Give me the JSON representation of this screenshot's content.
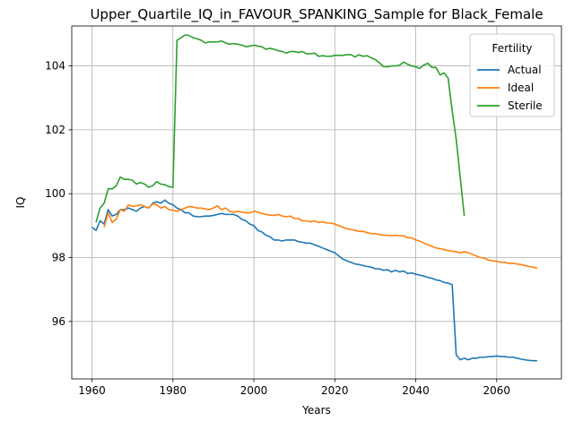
{
  "chart_data": {
    "type": "line",
    "title": "Upper_Quartile_IQ_in_FAVOUR_SPANKING_Sample for Black_Female",
    "xlabel": "Years",
    "ylabel": "IQ",
    "xlim": [
      1955,
      2076
    ],
    "ylim": [
      94.2,
      105.25
    ],
    "xticks": [
      1960,
      1980,
      2000,
      2020,
      2040,
      2060
    ],
    "yticks": [
      96,
      98,
      100,
      102,
      104
    ],
    "grid": true,
    "legend": {
      "title": "Fertility",
      "placement": "top-right"
    },
    "series": [
      {
        "name": "Actual",
        "color": "#1f77b4",
        "points": [
          [
            1960,
            98.95
          ],
          [
            1961,
            98.85
          ],
          [
            1962,
            99.15
          ],
          [
            1963,
            99.05
          ],
          [
            1964,
            99.5
          ],
          [
            1965,
            99.3
          ],
          [
            1966,
            99.35
          ],
          [
            1967,
            99.5
          ],
          [
            1968,
            99.5
          ],
          [
            1969,
            99.55
          ],
          [
            1970,
            99.5
          ],
          [
            1971,
            99.45
          ],
          [
            1972,
            99.55
          ],
          [
            1973,
            99.6
          ],
          [
            1974,
            99.55
          ],
          [
            1975,
            99.7
          ],
          [
            1976,
            99.75
          ],
          [
            1977,
            99.7
          ],
          [
            1978,
            99.8
          ],
          [
            1979,
            99.7
          ],
          [
            1980,
            99.65
          ],
          [
            1981,
            99.55
          ],
          [
            1982,
            99.5
          ],
          [
            1983,
            99.4
          ],
          [
            1984,
            99.4
          ],
          [
            1985,
            99.3
          ],
          [
            1986,
            99.28
          ],
          [
            1987,
            99.28
          ],
          [
            1988,
            99.3
          ],
          [
            1989,
            99.3
          ],
          [
            1990,
            99.32
          ],
          [
            1991,
            99.35
          ],
          [
            1992,
            99.38
          ],
          [
            1993,
            99.35
          ],
          [
            1994,
            99.35
          ],
          [
            1995,
            99.35
          ],
          [
            1996,
            99.3
          ],
          [
            1997,
            99.2
          ],
          [
            1998,
            99.15
          ],
          [
            1999,
            99.05
          ],
          [
            2000,
            99.0
          ],
          [
            2001,
            98.85
          ],
          [
            2002,
            98.8
          ],
          [
            2003,
            98.7
          ],
          [
            2004,
            98.65
          ],
          [
            2005,
            98.55
          ],
          [
            2006,
            98.55
          ],
          [
            2007,
            98.52
          ],
          [
            2008,
            98.55
          ],
          [
            2009,
            98.55
          ],
          [
            2010,
            98.55
          ],
          [
            2011,
            98.5
          ],
          [
            2012,
            98.48
          ],
          [
            2013,
            98.45
          ],
          [
            2014,
            98.45
          ],
          [
            2015,
            98.4
          ],
          [
            2016,
            98.35
          ],
          [
            2017,
            98.3
          ],
          [
            2018,
            98.25
          ],
          [
            2019,
            98.2
          ],
          [
            2020,
            98.15
          ],
          [
            2021,
            98.05
          ],
          [
            2022,
            97.95
          ],
          [
            2023,
            97.9
          ],
          [
            2024,
            97.85
          ],
          [
            2025,
            97.8
          ],
          [
            2026,
            97.78
          ],
          [
            2027,
            97.75
          ],
          [
            2028,
            97.72
          ],
          [
            2029,
            97.7
          ],
          [
            2030,
            97.65
          ],
          [
            2031,
            97.65
          ],
          [
            2032,
            97.6
          ],
          [
            2033,
            97.62
          ],
          [
            2034,
            97.55
          ],
          [
            2035,
            97.6
          ],
          [
            2036,
            97.55
          ],
          [
            2037,
            97.58
          ],
          [
            2038,
            97.5
          ],
          [
            2039,
            97.52
          ],
          [
            2040,
            97.48
          ],
          [
            2041,
            97.45
          ],
          [
            2042,
            97.42
          ],
          [
            2043,
            97.38
          ],
          [
            2044,
            97.35
          ],
          [
            2045,
            97.3
          ],
          [
            2046,
            97.28
          ],
          [
            2047,
            97.22
          ],
          [
            2048,
            97.2
          ],
          [
            2049,
            97.15
          ],
          [
            2050,
            94.95
          ],
          [
            2051,
            94.8
          ],
          [
            2052,
            94.85
          ],
          [
            2053,
            94.8
          ],
          [
            2054,
            94.85
          ],
          [
            2055,
            94.85
          ],
          [
            2056,
            94.88
          ],
          [
            2057,
            94.88
          ],
          [
            2058,
            94.9
          ],
          [
            2059,
            94.9
          ],
          [
            2060,
            94.92
          ],
          [
            2061,
            94.9
          ],
          [
            2062,
            94.9
          ],
          [
            2063,
            94.88
          ],
          [
            2064,
            94.88
          ],
          [
            2065,
            94.85
          ],
          [
            2066,
            94.82
          ],
          [
            2067,
            94.8
          ],
          [
            2068,
            94.78
          ],
          [
            2069,
            94.77
          ],
          [
            2070,
            94.77
          ]
        ]
      },
      {
        "name": "Ideal",
        "color": "#ff7f0e",
        "points": [
          [
            1963,
            98.95
          ],
          [
            1964,
            99.4
          ],
          [
            1965,
            99.1
          ],
          [
            1966,
            99.2
          ],
          [
            1967,
            99.5
          ],
          [
            1968,
            99.45
          ],
          [
            1969,
            99.65
          ],
          [
            1970,
            99.6
          ],
          [
            1971,
            99.62
          ],
          [
            1972,
            99.65
          ],
          [
            1973,
            99.6
          ],
          [
            1974,
            99.55
          ],
          [
            1975,
            99.68
          ],
          [
            1976,
            99.65
          ],
          [
            1977,
            99.55
          ],
          [
            1978,
            99.6
          ],
          [
            1979,
            99.5
          ],
          [
            1980,
            99.48
          ],
          [
            1981,
            99.45
          ],
          [
            1982,
            99.5
          ],
          [
            1983,
            99.55
          ],
          [
            1984,
            99.6
          ],
          [
            1985,
            99.58
          ],
          [
            1986,
            99.55
          ],
          [
            1987,
            99.55
          ],
          [
            1988,
            99.52
          ],
          [
            1989,
            99.5
          ],
          [
            1990,
            99.55
          ],
          [
            1991,
            99.62
          ],
          [
            1992,
            99.5
          ],
          [
            1993,
            99.55
          ],
          [
            1994,
            99.45
          ],
          [
            1995,
            99.42
          ],
          [
            1996,
            99.45
          ],
          [
            1997,
            99.42
          ],
          [
            1998,
            99.4
          ],
          [
            1999,
            99.4
          ],
          [
            2000,
            99.45
          ],
          [
            2001,
            99.42
          ],
          [
            2002,
            99.38
          ],
          [
            2003,
            99.35
          ],
          [
            2004,
            99.33
          ],
          [
            2005,
            99.32
          ],
          [
            2006,
            99.35
          ],
          [
            2007,
            99.3
          ],
          [
            2008,
            99.28
          ],
          [
            2009,
            99.3
          ],
          [
            2010,
            99.22
          ],
          [
            2011,
            99.22
          ],
          [
            2012,
            99.15
          ],
          [
            2013,
            99.15
          ],
          [
            2014,
            99.12
          ],
          [
            2015,
            99.15
          ],
          [
            2016,
            99.1
          ],
          [
            2017,
            99.12
          ],
          [
            2018,
            99.08
          ],
          [
            2019,
            99.08
          ],
          [
            2020,
            99.05
          ],
          [
            2021,
            99.0
          ],
          [
            2022,
            98.95
          ],
          [
            2023,
            98.9
          ],
          [
            2024,
            98.88
          ],
          [
            2025,
            98.85
          ],
          [
            2026,
            98.82
          ],
          [
            2027,
            98.82
          ],
          [
            2028,
            98.78
          ],
          [
            2029,
            98.75
          ],
          [
            2030,
            98.75
          ],
          [
            2031,
            98.72
          ],
          [
            2032,
            98.7
          ],
          [
            2033,
            98.7
          ],
          [
            2034,
            98.68
          ],
          [
            2035,
            98.7
          ],
          [
            2036,
            98.68
          ],
          [
            2037,
            98.68
          ],
          [
            2038,
            98.62
          ],
          [
            2039,
            98.62
          ],
          [
            2040,
            98.55
          ],
          [
            2041,
            98.52
          ],
          [
            2042,
            98.45
          ],
          [
            2043,
            98.4
          ],
          [
            2044,
            98.35
          ],
          [
            2045,
            98.3
          ],
          [
            2046,
            98.28
          ],
          [
            2047,
            98.25
          ],
          [
            2048,
            98.22
          ],
          [
            2049,
            98.2
          ],
          [
            2050,
            98.18
          ],
          [
            2051,
            98.15
          ],
          [
            2052,
            98.18
          ],
          [
            2053,
            98.15
          ],
          [
            2054,
            98.1
          ],
          [
            2055,
            98.05
          ],
          [
            2056,
            98.0
          ],
          [
            2057,
            97.98
          ],
          [
            2058,
            97.92
          ],
          [
            2059,
            97.9
          ],
          [
            2060,
            97.88
          ],
          [
            2061,
            97.85
          ],
          [
            2062,
            97.85
          ],
          [
            2063,
            97.82
          ],
          [
            2064,
            97.82
          ],
          [
            2065,
            97.8
          ],
          [
            2066,
            97.78
          ],
          [
            2067,
            97.75
          ],
          [
            2068,
            97.72
          ],
          [
            2069,
            97.7
          ],
          [
            2070,
            97.66
          ]
        ]
      },
      {
        "name": "Sterile",
        "color": "#2ca02c",
        "points": [
          [
            1961,
            99.1
          ],
          [
            1962,
            99.55
          ],
          [
            1963,
            99.7
          ],
          [
            1964,
            100.15
          ],
          [
            1965,
            100.15
          ],
          [
            1966,
            100.25
          ],
          [
            1967,
            100.52
          ],
          [
            1968,
            100.45
          ],
          [
            1969,
            100.45
          ],
          [
            1970,
            100.42
          ],
          [
            1971,
            100.3
          ],
          [
            1972,
            100.35
          ],
          [
            1973,
            100.3
          ],
          [
            1974,
            100.2
          ],
          [
            1975,
            100.25
          ],
          [
            1976,
            100.38
          ],
          [
            1977,
            100.3
          ],
          [
            1978,
            100.28
          ],
          [
            1979,
            100.22
          ],
          [
            1980,
            100.2
          ],
          [
            1981,
            104.8
          ],
          [
            1982,
            104.88
          ],
          [
            1983,
            104.97
          ],
          [
            1984,
            104.95
          ],
          [
            1985,
            104.88
          ],
          [
            1986,
            104.85
          ],
          [
            1987,
            104.8
          ],
          [
            1988,
            104.72
          ],
          [
            1989,
            104.75
          ],
          [
            1990,
            104.75
          ],
          [
            1991,
            104.75
          ],
          [
            1992,
            104.78
          ],
          [
            1993,
            104.72
          ],
          [
            1994,
            104.68
          ],
          [
            1995,
            104.7
          ],
          [
            1996,
            104.68
          ],
          [
            1997,
            104.65
          ],
          [
            1998,
            104.6
          ],
          [
            1999,
            104.62
          ],
          [
            2000,
            104.65
          ],
          [
            2001,
            104.62
          ],
          [
            2002,
            104.6
          ],
          [
            2003,
            104.52
          ],
          [
            2004,
            104.55
          ],
          [
            2005,
            104.52
          ],
          [
            2006,
            104.48
          ],
          [
            2007,
            104.45
          ],
          [
            2008,
            104.4
          ],
          [
            2009,
            104.45
          ],
          [
            2010,
            104.45
          ],
          [
            2011,
            104.42
          ],
          [
            2012,
            104.45
          ],
          [
            2013,
            104.38
          ],
          [
            2014,
            104.38
          ],
          [
            2015,
            104.4
          ],
          [
            2016,
            104.3
          ],
          [
            2017,
            104.32
          ],
          [
            2018,
            104.3
          ],
          [
            2019,
            104.3
          ],
          [
            2020,
            104.33
          ],
          [
            2021,
            104.33
          ],
          [
            2022,
            104.33
          ],
          [
            2023,
            104.35
          ],
          [
            2024,
            104.35
          ],
          [
            2025,
            104.28
          ],
          [
            2026,
            104.35
          ],
          [
            2027,
            104.3
          ],
          [
            2028,
            104.32
          ],
          [
            2029,
            104.25
          ],
          [
            2030,
            104.2
          ],
          [
            2031,
            104.1
          ],
          [
            2032,
            103.98
          ],
          [
            2033,
            103.97
          ],
          [
            2034,
            104.0
          ],
          [
            2035,
            104.0
          ],
          [
            2036,
            104.02
          ],
          [
            2037,
            104.12
          ],
          [
            2038,
            104.05
          ],
          [
            2039,
            104.0
          ],
          [
            2040,
            103.97
          ],
          [
            2041,
            103.92
          ],
          [
            2042,
            104.03
          ],
          [
            2043,
            104.08
          ],
          [
            2044,
            103.95
          ],
          [
            2045,
            103.95
          ],
          [
            2046,
            103.72
          ],
          [
            2047,
            103.78
          ],
          [
            2048,
            103.62
          ],
          [
            2049,
            102.6
          ],
          [
            2050,
            101.7
          ],
          [
            2051,
            100.5
          ],
          [
            2052,
            99.3
          ]
        ]
      }
    ]
  }
}
